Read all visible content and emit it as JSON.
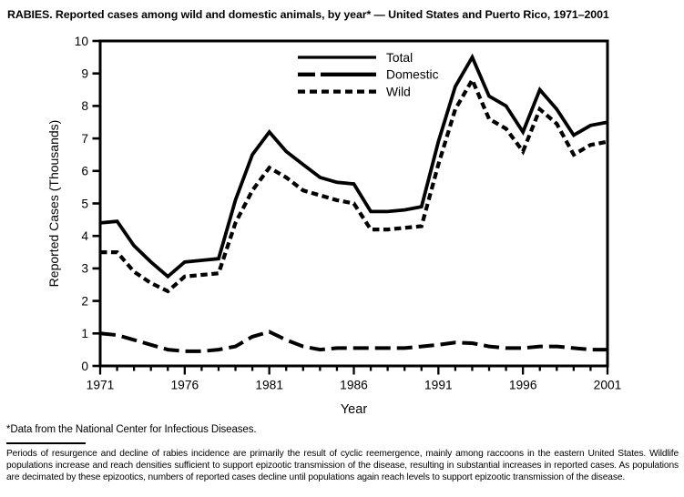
{
  "title": "RABIES. Reported cases among wild and domestic animals, by year* — United States and Puerto Rico, 1971–2001",
  "footnote": "*Data from the National Center for Infectious Diseases.",
  "note": "Periods of resurgence and decline of rabies incidence are primarily the result of cyclic reemergence, mainly among raccoons in the eastern United States. Wildlife populations increase and reach densities sufficient to support epizootic transmission of the disease, resulting in substantial increases in reported cases. As populations are decimated by these epizootics, numbers of reported cases decline until populations again reach levels to support epizootic transmission of the disease.",
  "colors": {
    "line": "#000000",
    "background": "#ffffff"
  },
  "chart_data": {
    "type": "line",
    "title": "RABIES. Reported cases among wild and domestic animals, by year* — United States and Puerto Rico, 1971–2001",
    "xlabel": "Year",
    "ylabel": "Reported Cases (Thousands)",
    "xlim": [
      1971,
      2001
    ],
    "ylim": [
      0,
      10
    ],
    "yticks": [
      0,
      1,
      2,
      3,
      4,
      5,
      6,
      7,
      8,
      9,
      10
    ],
    "xticks_labeled": [
      1971,
      1976,
      1981,
      1986,
      1991,
      1996,
      2001
    ],
    "xticks_minor_every": 1,
    "grid": false,
    "legend_position": "top-center-inside",
    "x": [
      1971,
      1972,
      1973,
      1974,
      1975,
      1976,
      1977,
      1978,
      1979,
      1980,
      1981,
      1982,
      1983,
      1984,
      1985,
      1986,
      1987,
      1988,
      1989,
      1990,
      1991,
      1992,
      1993,
      1994,
      1995,
      1996,
      1997,
      1998,
      1999,
      2000,
      2001
    ],
    "series": [
      {
        "name": "Total",
        "line_style": "solid",
        "values": [
          4.4,
          4.45,
          3.7,
          3.2,
          2.75,
          3.2,
          3.25,
          3.3,
          5.1,
          6.5,
          7.2,
          6.6,
          6.2,
          5.8,
          5.65,
          5.6,
          4.75,
          4.75,
          4.8,
          4.9,
          6.9,
          8.6,
          9.5,
          8.3,
          8.0,
          7.2,
          8.5,
          7.9,
          7.1,
          7.4,
          7.5
        ]
      },
      {
        "name": "Domestic",
        "line_style": "long-dash",
        "values": [
          1.0,
          0.95,
          0.8,
          0.65,
          0.5,
          0.45,
          0.45,
          0.5,
          0.6,
          0.9,
          1.05,
          0.8,
          0.6,
          0.5,
          0.55,
          0.55,
          0.55,
          0.55,
          0.55,
          0.6,
          0.65,
          0.72,
          0.7,
          0.6,
          0.55,
          0.55,
          0.6,
          0.6,
          0.55,
          0.5,
          0.5
        ]
      },
      {
        "name": "Wild",
        "line_style": "short-dash",
        "values": [
          3.5,
          3.5,
          2.9,
          2.55,
          2.3,
          2.75,
          2.8,
          2.85,
          4.4,
          5.4,
          6.1,
          5.8,
          5.4,
          5.25,
          5.1,
          5.0,
          4.2,
          4.2,
          4.25,
          4.3,
          6.2,
          7.9,
          8.8,
          7.6,
          7.3,
          6.6,
          7.9,
          7.45,
          6.5,
          6.8,
          6.9
        ]
      }
    ]
  }
}
